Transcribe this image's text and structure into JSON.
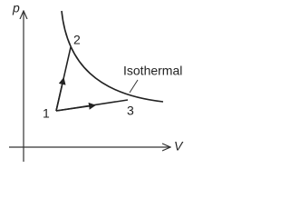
{
  "axes": {
    "y_label": "p",
    "x_label": "V"
  },
  "curve_label": "Isothermal",
  "points": [
    {
      "label": "1"
    },
    {
      "label": "2"
    },
    {
      "label": "3"
    }
  ]
}
